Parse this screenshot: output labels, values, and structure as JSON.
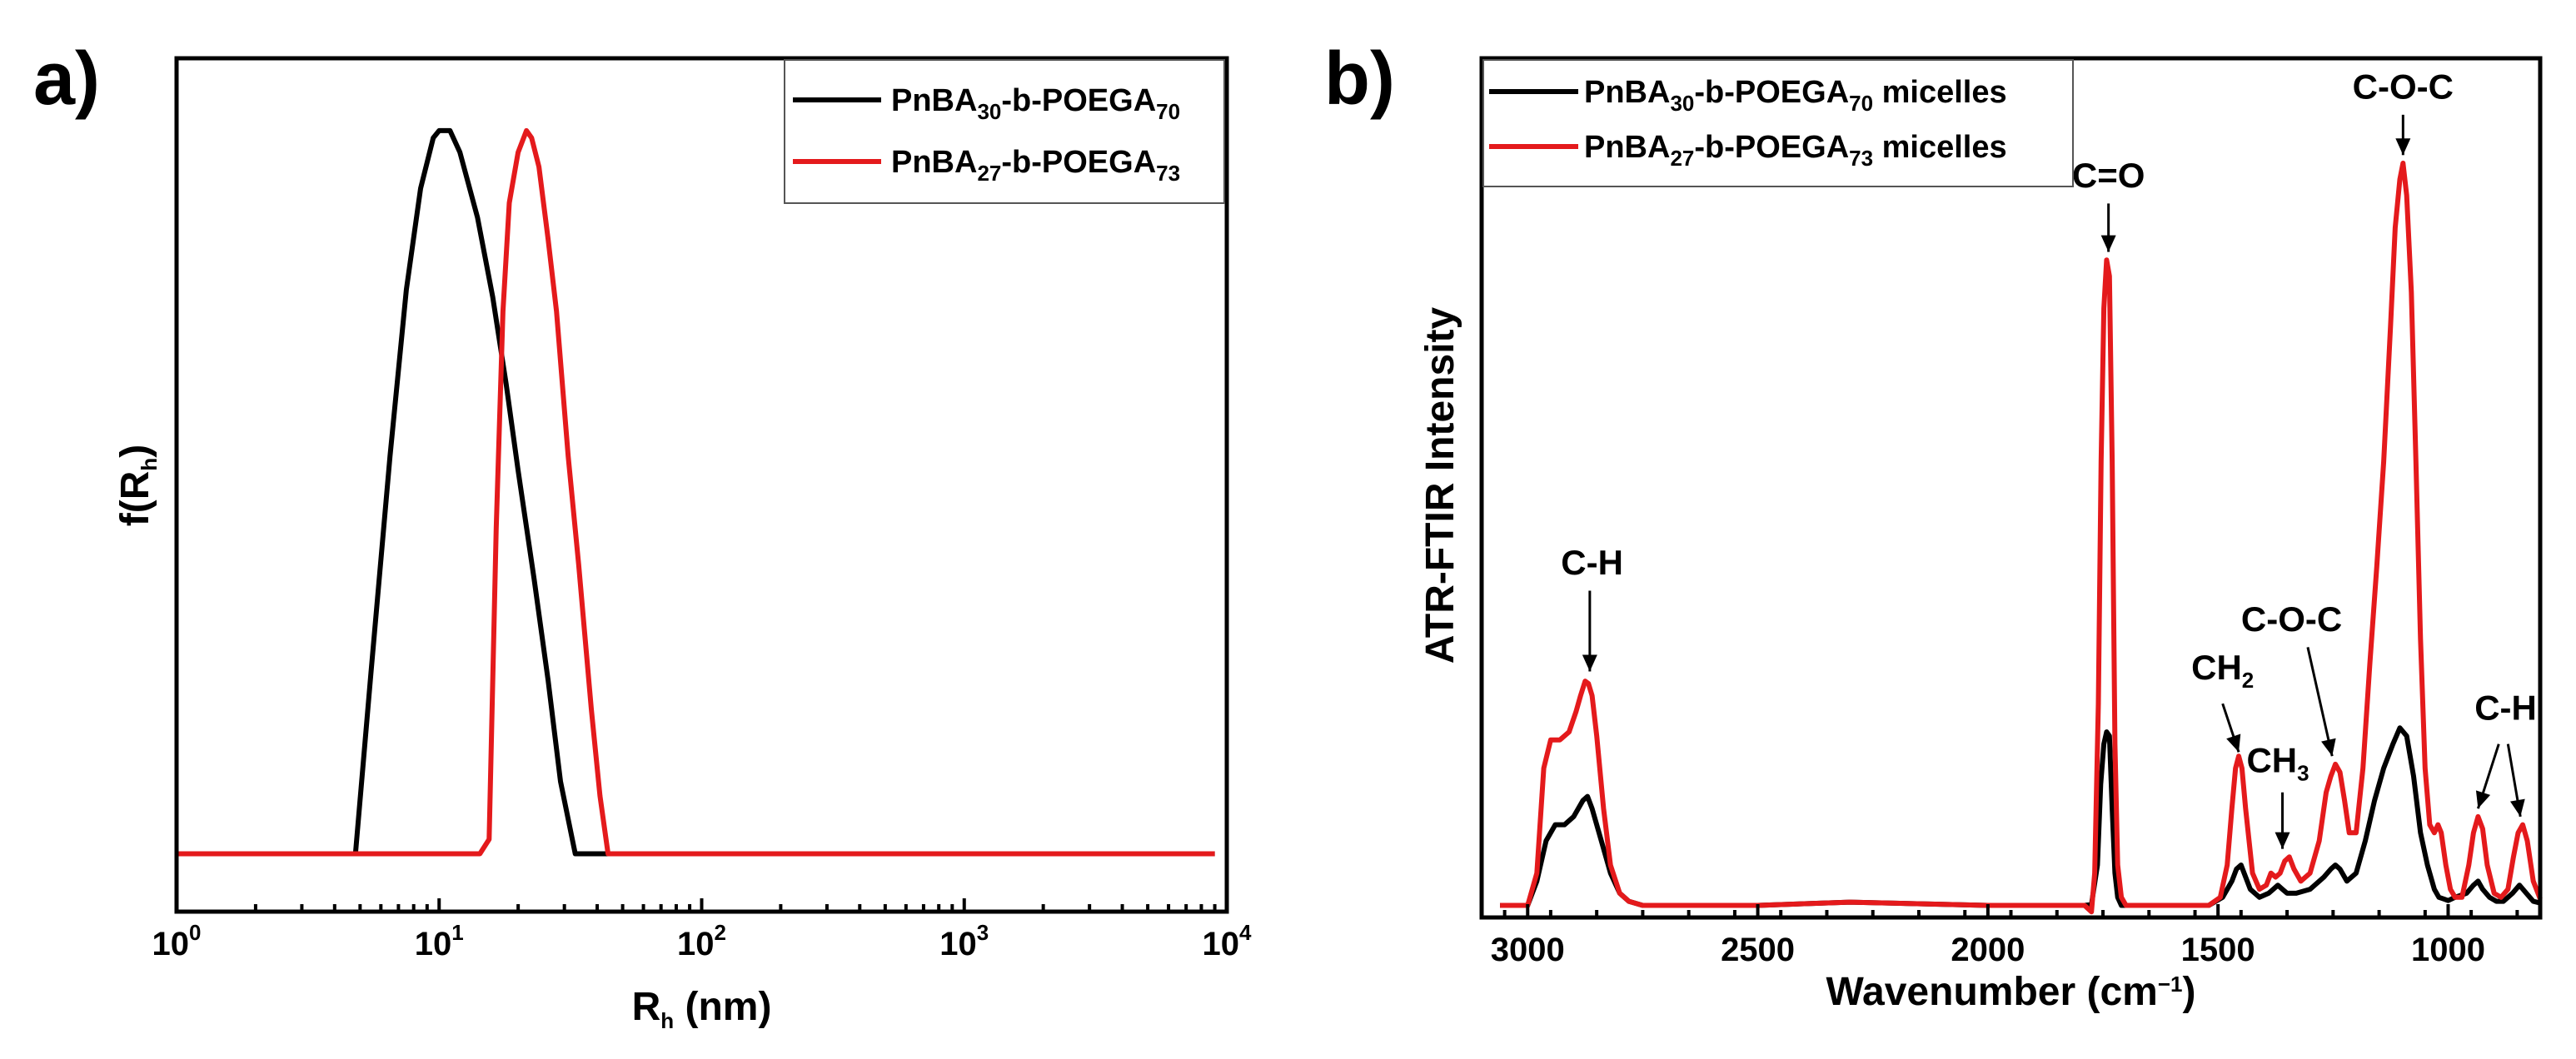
{
  "chart_data": [
    {
      "panel": "a)",
      "type": "line",
      "x_scale": "log",
      "xlabel": "R",
      "xlabel_sub": "h",
      "xlabel_unit": " (nm)",
      "ylabel": "f(R",
      "ylabel_sub": "h",
      "ylabel_end": ")",
      "xlim": [
        1,
        10000
      ],
      "ylim": [
        -0.08,
        1.1
      ],
      "xticks": [
        {
          "value": 1,
          "base": "10",
          "exp": "0"
        },
        {
          "value": 10,
          "base": "10",
          "exp": "1"
        },
        {
          "value": 100,
          "base": "10",
          "exp": "2"
        },
        {
          "value": 1000,
          "base": "10",
          "exp": "3"
        },
        {
          "value": 10000,
          "base": "10",
          "exp": "4"
        }
      ],
      "legend_position": "top-right",
      "series": [
        {
          "name": "PnBA30-b-POEGA70",
          "label_parts": [
            [
              "PnBA",
              ""
            ],
            [
              "30",
              "sub"
            ],
            [
              "-b-POEGA",
              ""
            ],
            [
              "70",
              "sub"
            ]
          ],
          "color": "#000000",
          "x": [
            1,
            4.8,
            5.5,
            6.5,
            7.5,
            8.5,
            9.5,
            10,
            11,
            12,
            14,
            16,
            18,
            20,
            23,
            26,
            29,
            33,
            36,
            40,
            45,
            9000
          ],
          "y": [
            0,
            0,
            0.25,
            0.55,
            0.78,
            0.92,
            0.99,
            1.0,
            1.0,
            0.97,
            0.88,
            0.77,
            0.65,
            0.53,
            0.38,
            0.24,
            0.1,
            0.0,
            0.0,
            0.0,
            0.0,
            0.0
          ]
        },
        {
          "name": "PnBA27-b-POEGA73",
          "label_parts": [
            [
              "PnBA",
              ""
            ],
            [
              "27",
              "sub"
            ],
            [
              "-b-POEGA",
              ""
            ],
            [
              "73",
              "sub"
            ]
          ],
          "color": "#e41a1c",
          "x": [
            1,
            14.3,
            15.5,
            16.5,
            17.5,
            18.5,
            20,
            21.5,
            22.5,
            24,
            26,
            28,
            31,
            34,
            38,
            41,
            44,
            45,
            9000
          ],
          "y": [
            0,
            0,
            0.02,
            0.45,
            0.75,
            0.9,
            0.97,
            1.0,
            0.99,
            0.95,
            0.85,
            0.75,
            0.55,
            0.4,
            0.2,
            0.08,
            0.0,
            0.0,
            0.0
          ]
        }
      ]
    },
    {
      "panel": "b)",
      "type": "line",
      "x_scale": "linear",
      "x_reversed": true,
      "xlabel": "Wavenumber (cm",
      "xlabel_sup": "−1",
      "xlabel_end": ")",
      "ylabel": "ATR-FTIR Intensity",
      "xlim": [
        3100,
        800
      ],
      "ylim": [
        -0.015,
        1.05
      ],
      "xticks": [
        3000,
        2500,
        2000,
        1500,
        1000
      ],
      "legend_position": "top-left",
      "series": [
        {
          "name": "PnBA30-b-POEGA70 micelles",
          "label_parts": [
            [
              "PnBA",
              ""
            ],
            [
              "30",
              "sub"
            ],
            [
              "-b-POEGA",
              ""
            ],
            [
              "70",
              "sub"
            ],
            [
              " micelles",
              ""
            ]
          ],
          "color": "#000000",
          "x": [
            3060,
            3000,
            2980,
            2960,
            2940,
            2920,
            2900,
            2880,
            2870,
            2860,
            2840,
            2820,
            2800,
            2780,
            2750,
            2700,
            2500,
            2300,
            2000,
            1850,
            1790,
            1775,
            1762,
            1755,
            1748,
            1742,
            1736,
            1730,
            1724,
            1718,
            1710,
            1700,
            1680,
            1600,
            1520,
            1490,
            1470,
            1460,
            1450,
            1430,
            1410,
            1390,
            1380,
            1370,
            1360,
            1350,
            1330,
            1300,
            1270,
            1255,
            1245,
            1235,
            1220,
            1200,
            1180,
            1160,
            1140,
            1120,
            1105,
            1090,
            1075,
            1060,
            1045,
            1030,
            1020,
            1010,
            1000,
            985,
            960,
            945,
            935,
            925,
            910,
            895,
            880,
            860,
            845,
            830,
            815,
            800
          ],
          "y": [
            0,
            0,
            0.03,
            0.08,
            0.1,
            0.1,
            0.11,
            0.13,
            0.135,
            0.12,
            0.08,
            0.04,
            0.015,
            0.005,
            0.0,
            0.0,
            0.0,
            0.004,
            0.0,
            0.0,
            0.0,
            0.001,
            0.05,
            0.15,
            0.2,
            0.215,
            0.21,
            0.12,
            0.04,
            0.01,
            0.0,
            0.0,
            0.0,
            0.0,
            0.0,
            0.01,
            0.03,
            0.045,
            0.05,
            0.02,
            0.01,
            0.015,
            0.02,
            0.025,
            0.02,
            0.015,
            0.015,
            0.02,
            0.035,
            0.045,
            0.05,
            0.045,
            0.03,
            0.04,
            0.08,
            0.13,
            0.17,
            0.2,
            0.22,
            0.21,
            0.16,
            0.09,
            0.05,
            0.02,
            0.01,
            0.008,
            0.006,
            0.01,
            0.015,
            0.025,
            0.03,
            0.02,
            0.01,
            0.005,
            0.005,
            0.015,
            0.025,
            0.015,
            0.005,
            0.003
          ]
        },
        {
          "name": "PnBA27-b-POEGA73 micelles",
          "label_parts": [
            [
              "PnBA",
              ""
            ],
            [
              "27",
              "sub"
            ],
            [
              "-b-POEGA",
              ""
            ],
            [
              "73",
              "sub"
            ],
            [
              " micelles",
              ""
            ]
          ],
          "color": "#e41a1c",
          "x": [
            3060,
            3000,
            2980,
            2965,
            2950,
            2930,
            2910,
            2895,
            2885,
            2875,
            2868,
            2860,
            2850,
            2835,
            2820,
            2800,
            2780,
            2750,
            2700,
            2500,
            2300,
            2000,
            1850,
            1790,
            1775,
            1768,
            1760,
            1754,
            1748,
            1742,
            1736,
            1730,
            1724,
            1718,
            1710,
            1700,
            1680,
            1600,
            1520,
            1495,
            1480,
            1470,
            1462,
            1455,
            1448,
            1440,
            1425,
            1410,
            1395,
            1385,
            1375,
            1365,
            1355,
            1345,
            1335,
            1320,
            1300,
            1280,
            1265,
            1255,
            1245,
            1235,
            1225,
            1215,
            1200,
            1185,
            1170,
            1155,
            1140,
            1125,
            1115,
            1105,
            1098,
            1090,
            1080,
            1070,
            1060,
            1050,
            1040,
            1030,
            1022,
            1015,
            1005,
            995,
            985,
            970,
            955,
            945,
            935,
            925,
            915,
            900,
            885,
            870,
            858,
            848,
            838,
            828,
            815,
            800
          ],
          "y": [
            0,
            0,
            0.04,
            0.17,
            0.205,
            0.205,
            0.215,
            0.24,
            0.26,
            0.278,
            0.275,
            0.26,
            0.21,
            0.12,
            0.05,
            0.015,
            0.005,
            0.0,
            0.0,
            0.0,
            0.004,
            0.0,
            0.0,
            0.0,
            -0.008,
            0.04,
            0.25,
            0.55,
            0.74,
            0.8,
            0.78,
            0.55,
            0.2,
            0.05,
            0.01,
            0.0,
            0.0,
            0.0,
            0.0,
            0.01,
            0.05,
            0.12,
            0.17,
            0.185,
            0.17,
            0.12,
            0.04,
            0.02,
            0.025,
            0.04,
            0.035,
            0.04,
            0.055,
            0.06,
            0.045,
            0.03,
            0.04,
            0.08,
            0.14,
            0.16,
            0.175,
            0.165,
            0.13,
            0.09,
            0.09,
            0.17,
            0.3,
            0.42,
            0.55,
            0.72,
            0.84,
            0.9,
            0.92,
            0.88,
            0.76,
            0.55,
            0.33,
            0.17,
            0.1,
            0.09,
            0.1,
            0.09,
            0.05,
            0.02,
            0.01,
            0.01,
            0.05,
            0.09,
            0.11,
            0.095,
            0.05,
            0.015,
            0.01,
            0.02,
            0.06,
            0.09,
            0.1,
            0.08,
            0.03,
            0.008
          ]
        }
      ],
      "annotations": [
        {
          "id": "ch-stretch",
          "parts": [
            [
              "C-H",
              ""
            ]
          ],
          "text_pos": [
            2860,
            0.41
          ],
          "arrows": [
            {
              "from": [
                2865,
                0.39
              ],
              "to": [
                2865,
                0.29
              ]
            }
          ]
        },
        {
          "id": "carbonyl",
          "parts": [
            [
              "C=O",
              ""
            ]
          ],
          "text_pos": [
            1738,
            0.89
          ],
          "arrows": [
            {
              "from": [
                1738,
                0.87
              ],
              "to": [
                1738,
                0.81
              ]
            }
          ]
        },
        {
          "id": "ch2",
          "parts": [
            [
              "CH",
              ""
            ],
            [
              "2",
              "sub"
            ]
          ],
          "text_pos": [
            1490,
            0.28
          ],
          "arrows": [
            {
              "from": [
                1490,
                0.25
              ],
              "to": [
                1455,
                0.19
              ]
            }
          ]
        },
        {
          "id": "ch3",
          "parts": [
            [
              "CH",
              ""
            ],
            [
              "3",
              "sub"
            ]
          ],
          "text_pos": [
            1370,
            0.165
          ],
          "arrows": [
            {
              "from": [
                1360,
                0.14
              ],
              "to": [
                1360,
                0.07
              ]
            }
          ]
        },
        {
          "id": "c-o-c-ester",
          "parts": [
            [
              "C-O-C",
              ""
            ]
          ],
          "text_pos": [
            1340,
            0.34
          ],
          "arrows": [
            {
              "from": [
                1305,
                0.32
              ],
              "to": [
                1252,
                0.185
              ]
            }
          ]
        },
        {
          "id": "c-o-c-ether",
          "parts": [
            [
              "C-O-C",
              ""
            ]
          ],
          "text_pos": [
            1098,
            1.0
          ],
          "arrows": [
            {
              "from": [
                1098,
                0.98
              ],
              "to": [
                1098,
                0.93
              ]
            }
          ]
        },
        {
          "id": "ch-bend",
          "parts": [
            [
              "C-H",
              ""
            ]
          ],
          "text_pos": [
            875,
            0.23
          ],
          "arrows": [
            {
              "from": [
                890,
                0.2
              ],
              "to": [
                935,
                0.12
              ]
            },
            {
              "from": [
                870,
                0.2
              ],
              "to": [
                843,
                0.11
              ]
            }
          ]
        }
      ]
    }
  ]
}
